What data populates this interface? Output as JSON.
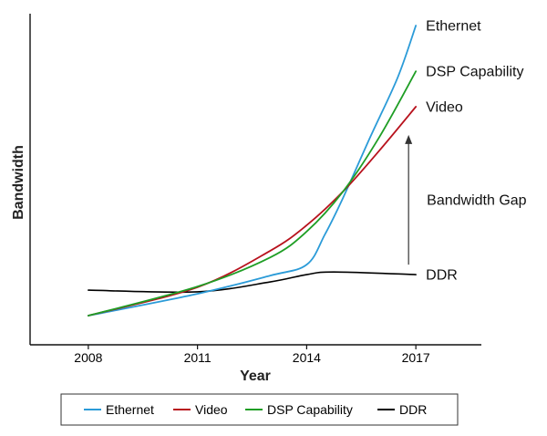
{
  "chart_data": {
    "type": "line",
    "xlabel": "Year",
    "ylabel": "Bandwidth",
    "xlim": [
      2006.4,
      2018.8
    ],
    "ylim": [
      0,
      100
    ],
    "x_ticks": [
      2008,
      2011,
      2014,
      2017
    ],
    "x_tick_labels": [
      "2008",
      "2011",
      "2014",
      "2017"
    ],
    "grid": false,
    "legend_position": "bottom",
    "series": [
      {
        "name": "Ethernet",
        "color": "#2b9bd8",
        "x": [
          2008,
          2011,
          2013,
          2014,
          2014.5,
          2015,
          2015.75,
          2016.5,
          2017
        ],
        "y": [
          8.8,
          15.4,
          20.9,
          24.2,
          33.3,
          44.4,
          62.8,
          80.7,
          96.4
        ]
      },
      {
        "name": "Video",
        "color": "#b8121d",
        "x": [
          2008,
          2011,
          2013,
          2014,
          2015,
          2016,
          2017
        ],
        "y": [
          8.8,
          17.4,
          28.4,
          36.1,
          46.3,
          58.7,
          71.9
        ]
      },
      {
        "name": "DSP Capability",
        "color": "#1f9e25",
        "x": [
          2008,
          2011,
          2013,
          2014,
          2015,
          2016,
          2017
        ],
        "y": [
          8.8,
          17.6,
          26.4,
          34.2,
          46.3,
          62.8,
          82.6
        ]
      },
      {
        "name": "DDR",
        "color": "#000000",
        "x": [
          2008,
          2011,
          2013,
          2014,
          2014.75,
          2017
        ],
        "y": [
          16.5,
          16.0,
          19.0,
          21.2,
          22.0,
          21.2
        ]
      }
    ],
    "annotations": [
      {
        "text": "Bandwidth Gap",
        "arrow": {
          "x": 2016.8,
          "from": 24.2,
          "to": 63.4
        }
      }
    ]
  }
}
